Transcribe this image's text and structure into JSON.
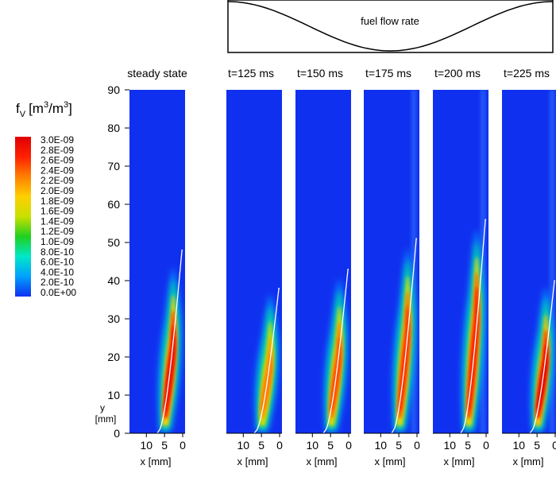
{
  "chart_data": {
    "type": "heatmap",
    "colorbar": {
      "title_main": "f",
      "title_sub": "V",
      "title_unit_open": "[m",
      "title_exp": "3",
      "title_slash": "/m",
      "title_exp2": "3",
      "title_close": "]",
      "tick_labels": [
        "3.0E-09",
        "2.8E-09",
        "2.6E-09",
        "2.4E-09",
        "2.2E-09",
        "2.0E-09",
        "1.8E-09",
        "1.6E-09",
        "1.4E-09",
        "1.2E-09",
        "1.0E-09",
        "8.0E-10",
        "6.0E-10",
        "4.0E-10",
        "2.0E-10",
        "0.0E+00"
      ],
      "range": [
        0,
        3e-09
      ],
      "colormap": [
        "#1030f0",
        "#00a0ff",
        "#00e8c8",
        "#20d020",
        "#c8e000",
        "#ffd000",
        "#ff8000",
        "#ff2000",
        "#e00000"
      ]
    },
    "y_axis": {
      "label_line1": "y",
      "label_line2": "[mm]",
      "range": [
        0,
        90
      ],
      "ticks": [
        0,
        10,
        20,
        30,
        40,
        50,
        60,
        70,
        80,
        90
      ]
    },
    "x_axis": {
      "label": "x [mm]",
      "tick_labels": [
        "10",
        "5",
        "0"
      ],
      "range": [
        14,
        0
      ]
    },
    "background_color": "#1030f0",
    "inset": {
      "label": "fuel flow rate"
    },
    "panels": [
      {
        "title": "steady state",
        "flame_height": 48,
        "peak": 2.9e-09,
        "core_top": 40
      },
      {
        "title": "t=125 ms",
        "flame_height": 38,
        "peak": 2.3e-09,
        "core_top": 33
      },
      {
        "title": "t=150 ms",
        "flame_height": 43,
        "peak": 2.5e-09,
        "core_top": 37
      },
      {
        "title": "t=175 ms",
        "flame_height": 51,
        "peak": 2.6e-09,
        "core_top": 45
      },
      {
        "title": "t=200 ms",
        "flame_height": 56,
        "peak": 2.7e-09,
        "core_top": 50
      },
      {
        "title": "t=225 ms",
        "flame_height": 40,
        "peak": 3e-09,
        "core_top": 35
      }
    ]
  }
}
